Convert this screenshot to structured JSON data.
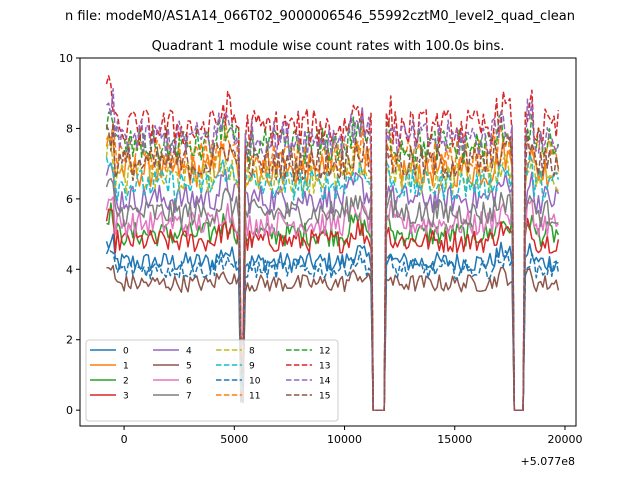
{
  "chart_data": {
    "type": "line",
    "suptitle": "n file: modeM0/AS1A14_066T02_9000006546_55992cztM0_level2_quad_clean",
    "title": "Quadrant 1 module wise count rates with 100.0s bins.",
    "xlabel": "",
    "ylabel": "",
    "x_offset_label": "+5.077e8",
    "xlim": [
      -2000,
      20500
    ],
    "ylim": [
      -0.45,
      10
    ],
    "x_range": [
      -800,
      19700
    ],
    "bin_size": 100,
    "xticks": [
      0,
      5000,
      10000,
      15000,
      20000
    ],
    "xtick_labels": [
      "0",
      "5000",
      "10000",
      "15000",
      "20000"
    ],
    "yticks": [
      0,
      2,
      4,
      6,
      8,
      10
    ],
    "ytick_labels": [
      "0",
      "2",
      "4",
      "6",
      "8",
      "10"
    ],
    "dips": [
      {
        "start": 5250,
        "end": 5450,
        "depth": "deep"
      },
      {
        "start": 11300,
        "end": 11800,
        "depth": "zero"
      },
      {
        "start": 17650,
        "end": 18150,
        "depth": "zero"
      }
    ],
    "legend_location": "lower-left",
    "series": [
      {
        "name": "0",
        "color": "#1f77b4",
        "style": "solid",
        "level": 4.2
      },
      {
        "name": "1",
        "color": "#ff7f0e",
        "style": "solid",
        "level": 6.8
      },
      {
        "name": "2",
        "color": "#2ca02c",
        "style": "solid",
        "level": 5.0
      },
      {
        "name": "3",
        "color": "#d62728",
        "style": "solid",
        "level": 4.8
      },
      {
        "name": "4",
        "color": "#9467bd",
        "style": "solid",
        "level": 6.0
      },
      {
        "name": "5",
        "color": "#8c564b",
        "style": "solid",
        "level": 3.6
      },
      {
        "name": "6",
        "color": "#e377c2",
        "style": "solid",
        "level": 5.3
      },
      {
        "name": "7",
        "color": "#7f7f7f",
        "style": "solid",
        "level": 5.6
      },
      {
        "name": "8",
        "color": "#bcbd22",
        "style": "dashed",
        "level": 6.6
      },
      {
        "name": "9",
        "color": "#17becf",
        "style": "dashed",
        "level": 6.4
      },
      {
        "name": "10",
        "color": "#1f77b4",
        "style": "dashed",
        "level": 4.0
      },
      {
        "name": "11",
        "color": "#ff7f0e",
        "style": "dashed",
        "level": 7.2
      },
      {
        "name": "12",
        "color": "#2ca02c",
        "style": "dashed",
        "level": 7.5
      },
      {
        "name": "13",
        "color": "#d62728",
        "style": "dashed",
        "level": 8.0
      },
      {
        "name": "14",
        "color": "#9467bd",
        "style": "dashed",
        "level": 7.7
      },
      {
        "name": "15",
        "color": "#8c564b",
        "style": "dashed",
        "level": 7.0
      }
    ]
  }
}
